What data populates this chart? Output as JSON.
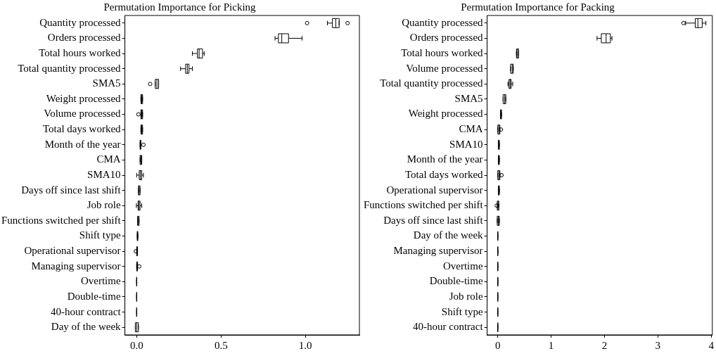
{
  "chart_data": [
    {
      "type": "box",
      "orientation": "horizontal",
      "title": "Permutation Importance for Picking",
      "grid": false,
      "categories": [
        "Quantity processed",
        "Orders processed",
        "Total hours worked",
        "Total quantity processed",
        "SMA5",
        "Weight processed",
        "Volume processed",
        "Total days worked",
        "Month of the year",
        "CMA",
        "SMA10",
        "Days off since last shift",
        "Job role",
        "Functions switched per shift",
        "Shift type",
        "Operational supervisor",
        "Managing supervisor",
        "Overtime",
        "Double-time",
        "40-hour contract",
        "Day of the week"
      ],
      "boxes": [
        {
          "low": 1.13,
          "q1": 1.16,
          "median": 1.18,
          "q3": 1.2,
          "high": 1.2,
          "outliers": [
            1.01,
            1.25
          ]
        },
        {
          "low": 0.82,
          "q1": 0.84,
          "median": 0.86,
          "q3": 0.9,
          "high": 0.98
        },
        {
          "low": 0.33,
          "q1": 0.36,
          "median": 0.37,
          "q3": 0.39,
          "high": 0.4
        },
        {
          "low": 0.26,
          "q1": 0.29,
          "median": 0.3,
          "q3": 0.31,
          "high": 0.33
        },
        {
          "low": 0.11,
          "q1": 0.11,
          "median": 0.12,
          "q3": 0.13,
          "high": 0.13,
          "outliers": [
            0.08
          ]
        },
        {
          "low": 0.025,
          "q1": 0.025,
          "median": 0.03,
          "q3": 0.035,
          "high": 0.035
        },
        {
          "low": 0.025,
          "q1": 0.025,
          "median": 0.03,
          "q3": 0.035,
          "high": 0.035,
          "outliers": [
            0.01
          ]
        },
        {
          "low": 0.025,
          "q1": 0.025,
          "median": 0.03,
          "q3": 0.035,
          "high": 0.035
        },
        {
          "low": 0.02,
          "q1": 0.02,
          "median": 0.022,
          "q3": 0.025,
          "high": 0.025,
          "outliers": [
            0.04
          ]
        },
        {
          "low": 0.02,
          "q1": 0.02,
          "median": 0.025,
          "q3": 0.03,
          "high": 0.03
        },
        {
          "low": 0.0,
          "q1": 0.015,
          "median": 0.022,
          "q3": 0.03,
          "high": 0.04
        },
        {
          "low": 0.01,
          "q1": 0.01,
          "median": 0.015,
          "q3": 0.02,
          "high": 0.02
        },
        {
          "low": -0.002,
          "q1": 0.008,
          "median": 0.014,
          "q3": 0.02,
          "high": 0.03
        },
        {
          "low": 0.005,
          "q1": 0.005,
          "median": 0.01,
          "q3": 0.014,
          "high": 0.014
        },
        {
          "low": 0.003,
          "q1": 0.003,
          "median": 0.005,
          "q3": 0.007,
          "high": 0.007
        },
        {
          "low": 0.0,
          "q1": 0.0,
          "median": 0.003,
          "q3": 0.005,
          "high": 0.005,
          "outliers": [
            -0.005
          ]
        },
        {
          "low": 0.0,
          "q1": 0.0,
          "median": 0.003,
          "q3": 0.005,
          "high": 0.005,
          "outliers": [
            0.015
          ]
        },
        {
          "low": 0.0,
          "q1": 0.0,
          "median": 0.0,
          "q3": 0.0,
          "high": 0.0
        },
        {
          "low": 0.0,
          "q1": 0.0,
          "median": 0.0,
          "q3": 0.0,
          "high": 0.0
        },
        {
          "low": 0.0,
          "q1": 0.0,
          "median": 0.0,
          "q3": 0.0,
          "high": 0.0
        },
        {
          "low": -0.008,
          "q1": -0.008,
          "median": 0.0,
          "q3": 0.01,
          "high": 0.01
        }
      ],
      "xlim": [
        -0.07,
        1.32
      ],
      "xticks": [
        {
          "value": 0,
          "label": "0.0"
        },
        {
          "value": 0.5,
          "label": "0.5"
        },
        {
          "value": 1,
          "label": "1.0"
        }
      ]
    },
    {
      "type": "box",
      "orientation": "horizontal",
      "title": "Permutation Importance for Packing",
      "grid": false,
      "categories": [
        "Quantity processed",
        "Orders processed",
        "Total hours worked",
        "Volume processed",
        "Total quantity processed",
        "SMA5",
        "Weight processed",
        "CMA",
        "SMA10",
        "Month of the year",
        "Total days worked",
        "Operational supervisor",
        "Functions switched per shift",
        "Days off since last shift",
        "Day of the week",
        "Managing supervisor",
        "Overtime",
        "Double-time",
        "Job role",
        "Shift type",
        "40-hour contract"
      ],
      "boxes": [
        {
          "low": 3.52,
          "q1": 3.7,
          "median": 3.75,
          "q3": 3.83,
          "high": 3.9,
          "outliers": [
            3.48
          ]
        },
        {
          "low": 1.86,
          "q1": 1.94,
          "median": 2.03,
          "q3": 2.11,
          "high": 2.14
        },
        {
          "low": 0.35,
          "q1": 0.35,
          "median": 0.37,
          "q3": 0.39,
          "high": 0.39
        },
        {
          "low": 0.24,
          "q1": 0.24,
          "median": 0.27,
          "q3": 0.29,
          "high": 0.29
        },
        {
          "low": 0.19,
          "q1": 0.21,
          "median": 0.23,
          "q3": 0.25,
          "high": 0.28
        },
        {
          "low": 0.1,
          "q1": 0.1,
          "median": 0.13,
          "q3": 0.15,
          "high": 0.15
        },
        {
          "low": 0.05,
          "q1": 0.05,
          "median": 0.06,
          "q3": 0.07,
          "high": 0.07
        },
        {
          "low": 0.0,
          "q1": 0.0,
          "median": 0.02,
          "q3": 0.04,
          "high": 0.04,
          "outliers": [
            0.06
          ]
        },
        {
          "low": 0.01,
          "q1": 0.01,
          "median": 0.02,
          "q3": 0.03,
          "high": 0.03
        },
        {
          "low": 0.01,
          "q1": 0.01,
          "median": 0.02,
          "q3": 0.03,
          "high": 0.03
        },
        {
          "low": 0.0,
          "q1": 0.0,
          "median": 0.02,
          "q3": 0.04,
          "high": 0.04,
          "outliers": [
            0.07
          ]
        },
        {
          "low": 0.01,
          "q1": 0.01,
          "median": 0.02,
          "q3": 0.03,
          "high": 0.03
        },
        {
          "low": -0.01,
          "q1": -0.01,
          "median": 0.005,
          "q3": 0.02,
          "high": 0.02,
          "outliers": [
            -0.02
          ]
        },
        {
          "low": -0.01,
          "q1": -0.01,
          "median": 0.01,
          "q3": 0.03,
          "high": 0.03
        },
        {
          "low": 0.0,
          "q1": 0.0,
          "median": 0.0,
          "q3": 0.0,
          "high": 0.0
        },
        {
          "low": 0.0,
          "q1": 0.0,
          "median": 0.0,
          "q3": 0.0,
          "high": 0.0
        },
        {
          "low": 0.0,
          "q1": 0.0,
          "median": 0.0,
          "q3": 0.0,
          "high": 0.0
        },
        {
          "low": 0.0,
          "q1": 0.0,
          "median": 0.0,
          "q3": 0.0,
          "high": 0.0
        },
        {
          "low": 0.0,
          "q1": 0.0,
          "median": 0.0,
          "q3": 0.0,
          "high": 0.0
        },
        {
          "low": 0.0,
          "q1": 0.0,
          "median": 0.0,
          "q3": 0.0,
          "high": 0.0
        },
        {
          "low": 0.0,
          "q1": 0.0,
          "median": 0.0,
          "q3": 0.0,
          "high": 0.0
        }
      ],
      "xlim": [
        -0.2,
        4.02
      ],
      "xticks": [
        0,
        1,
        2,
        3,
        4
      ]
    }
  ]
}
